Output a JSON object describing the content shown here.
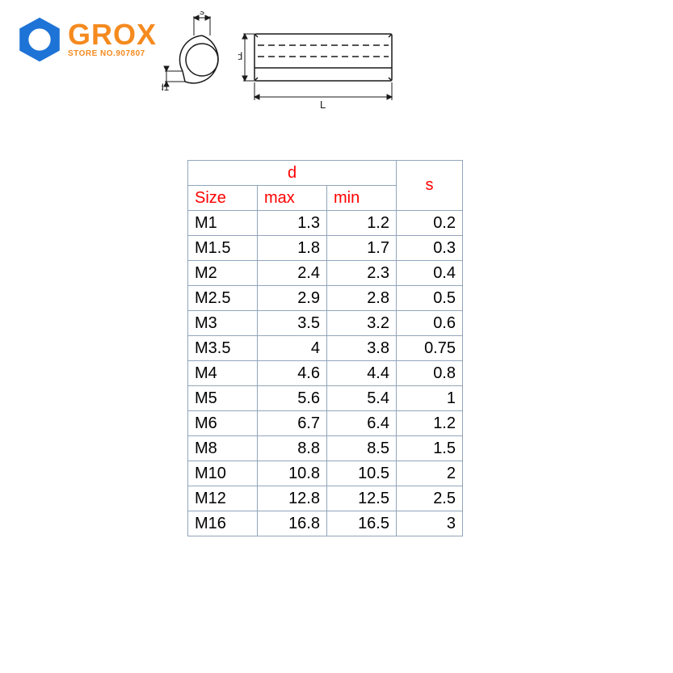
{
  "brand": {
    "name": "GROX",
    "subline": "STORE NO.907807",
    "hex_color": "#1e73d6",
    "text_color": "#f58a1f"
  },
  "diagram": {
    "labels": {
      "s": "s",
      "d1": "d1",
      "d": "d",
      "L": "L"
    },
    "stroke_color": "#1a1a1a",
    "arrow_color": "#1a1a1a"
  },
  "table": {
    "border_color": "#92a5bb",
    "header_color": "#ff0000",
    "body_color": "#1a1a1a",
    "headers": {
      "d": "d",
      "s": "s",
      "size": "Size",
      "max": "max",
      "min": "min"
    },
    "col_widths": {
      "size": 86,
      "max": 86,
      "min": 86,
      "s": 82
    },
    "rows": [
      {
        "size": "M1",
        "max": "1.3",
        "min": "1.2",
        "s": "0.2"
      },
      {
        "size": "M1.5",
        "max": "1.8",
        "min": "1.7",
        "s": "0.3"
      },
      {
        "size": "M2",
        "max": "2.4",
        "min": "2.3",
        "s": "0.4"
      },
      {
        "size": "M2.5",
        "max": "2.9",
        "min": "2.8",
        "s": "0.5"
      },
      {
        "size": "M3",
        "max": "3.5",
        "min": "3.2",
        "s": "0.6"
      },
      {
        "size": "M3.5",
        "max": "4",
        "min": "3.8",
        "s": "0.75"
      },
      {
        "size": "M4",
        "max": "4.6",
        "min": "4.4",
        "s": "0.8"
      },
      {
        "size": "M5",
        "max": "5.6",
        "min": "5.4",
        "s": "1"
      },
      {
        "size": "M6",
        "max": "6.7",
        "min": "6.4",
        "s": "1.2"
      },
      {
        "size": "M8",
        "max": "8.8",
        "min": "8.5",
        "s": "1.5"
      },
      {
        "size": "M10",
        "max": "10.8",
        "min": "10.5",
        "s": "2"
      },
      {
        "size": "M12",
        "max": "12.8",
        "min": "12.5",
        "s": "2.5"
      },
      {
        "size": "M16",
        "max": "16.8",
        "min": "16.5",
        "s": "3"
      }
    ]
  }
}
